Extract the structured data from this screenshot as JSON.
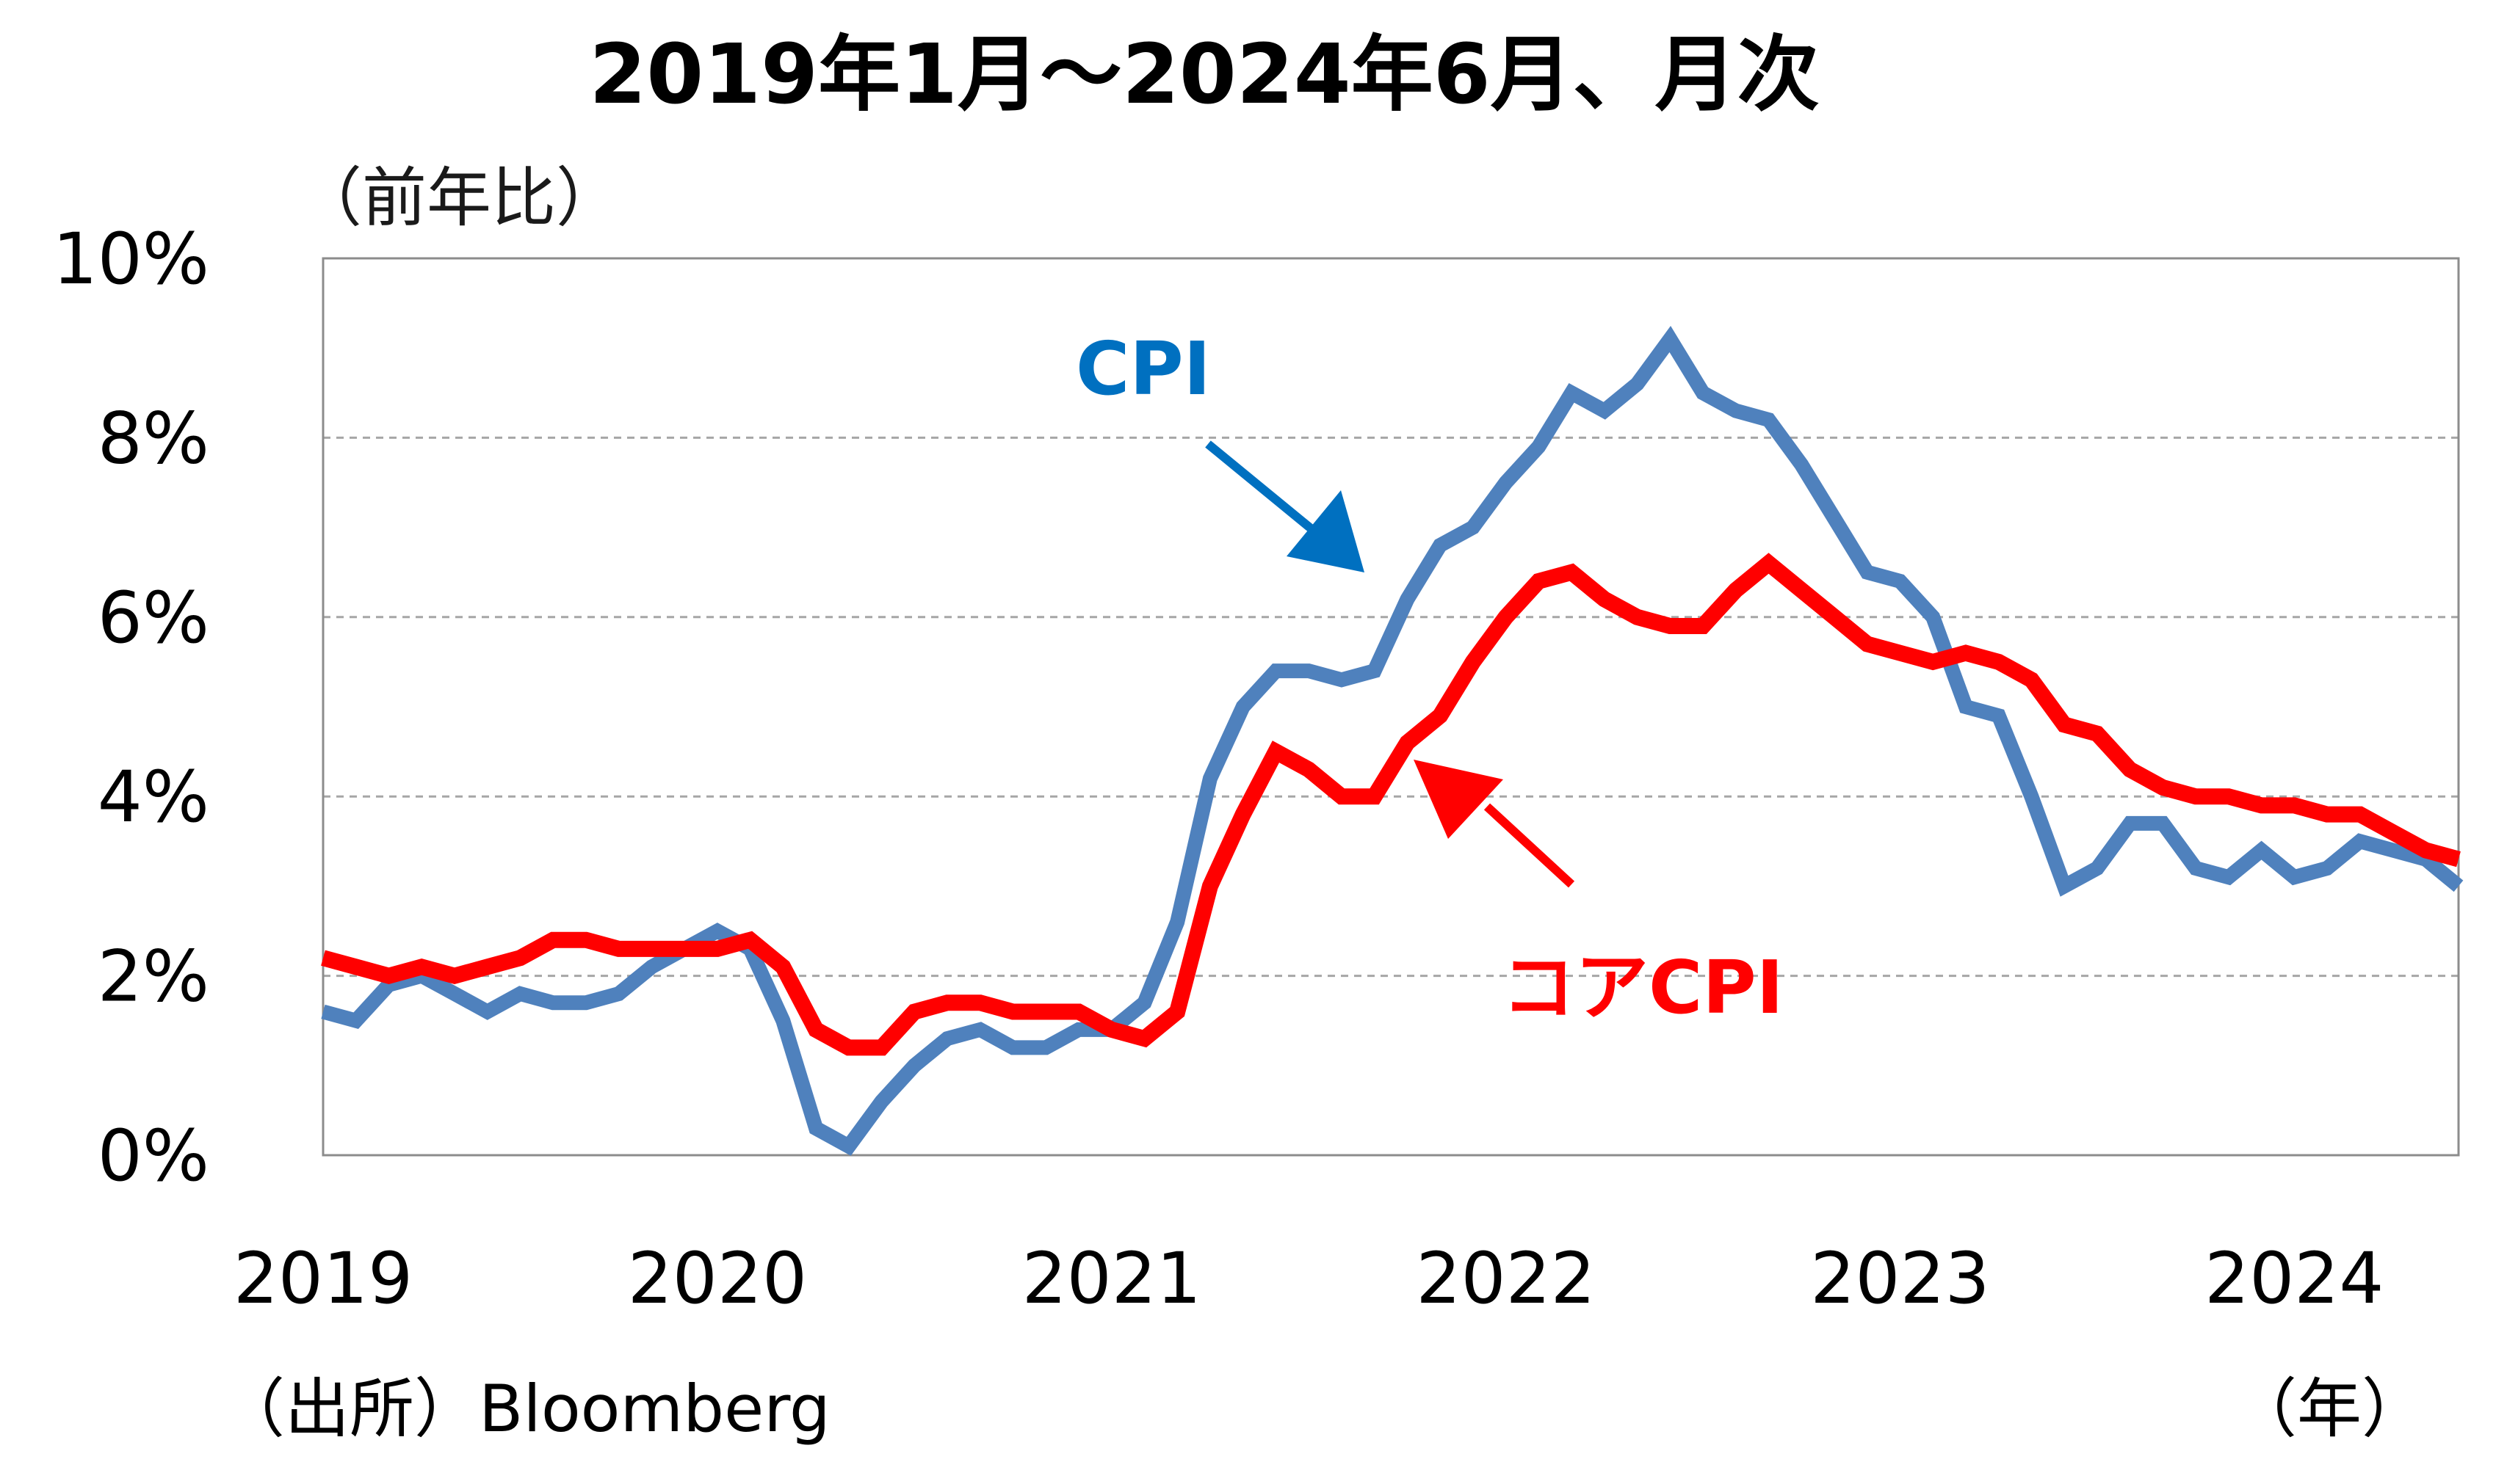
{
  "chart_data": {
    "type": "line",
    "title": "2019年1月～2024年6月、月次",
    "ylabel": "（前年比）",
    "xlabel": "（年）",
    "source": "（出所）Bloomberg",
    "ylim": [
      0,
      10
    ],
    "yticks": [
      0,
      2,
      4,
      6,
      8,
      10
    ],
    "ytick_labels": [
      "0%",
      "2%",
      "4%",
      "6%",
      "8%",
      "10%"
    ],
    "xticks": [
      2019,
      2020,
      2021,
      2022,
      2023,
      2024
    ],
    "xtick_labels": [
      "2019",
      "2020",
      "2021",
      "2022",
      "2023",
      "2024"
    ],
    "grid": "horizontal dashed",
    "start": "2019-01",
    "end": "2024-06",
    "series": [
      {
        "name": "CPI",
        "color": "#4f81bd",
        "label_color": "#0070c0",
        "values": [
          1.6,
          1.5,
          1.9,
          2.0,
          1.8,
          1.6,
          1.8,
          1.7,
          1.7,
          1.8,
          2.1,
          2.3,
          2.5,
          2.3,
          1.5,
          0.3,
          0.1,
          0.6,
          1.0,
          1.3,
          1.4,
          1.2,
          1.2,
          1.4,
          1.4,
          1.7,
          2.6,
          4.2,
          5.0,
          5.4,
          5.4,
          5.3,
          5.4,
          6.2,
          6.8,
          7.0,
          7.5,
          7.9,
          8.5,
          8.3,
          8.6,
          9.1,
          8.5,
          8.3,
          8.2,
          7.7,
          7.1,
          6.5,
          6.4,
          6.0,
          5.0,
          4.9,
          4.0,
          3.0,
          3.2,
          3.7,
          3.7,
          3.2,
          3.1,
          3.4,
          3.1,
          3.2,
          3.5,
          3.4,
          3.3,
          3.0
        ]
      },
      {
        "name": "コアCPI",
        "color": "#ff0000",
        "label_color": "#ff0000",
        "values": [
          2.2,
          2.1,
          2.0,
          2.1,
          2.0,
          2.1,
          2.2,
          2.4,
          2.4,
          2.3,
          2.3,
          2.3,
          2.3,
          2.4,
          2.1,
          1.4,
          1.2,
          1.2,
          1.6,
          1.7,
          1.7,
          1.6,
          1.6,
          1.6,
          1.4,
          1.3,
          1.6,
          3.0,
          3.8,
          4.5,
          4.3,
          4.0,
          4.0,
          4.6,
          4.9,
          5.5,
          6.0,
          6.4,
          6.5,
          6.2,
          6.0,
          5.9,
          5.9,
          6.3,
          6.6,
          6.3,
          6.0,
          5.7,
          5.6,
          5.5,
          5.6,
          5.5,
          5.3,
          4.8,
          4.7,
          4.3,
          4.1,
          4.0,
          4.0,
          3.9,
          3.9,
          3.8,
          3.8,
          3.6,
          3.4,
          3.3
        ]
      }
    ],
    "annotations": [
      {
        "label": "CPI",
        "arrow_to": "CPI series near 2021-09"
      },
      {
        "label": "コアCPI",
        "arrow_to": "コアCPI series near 2021-10"
      }
    ]
  }
}
